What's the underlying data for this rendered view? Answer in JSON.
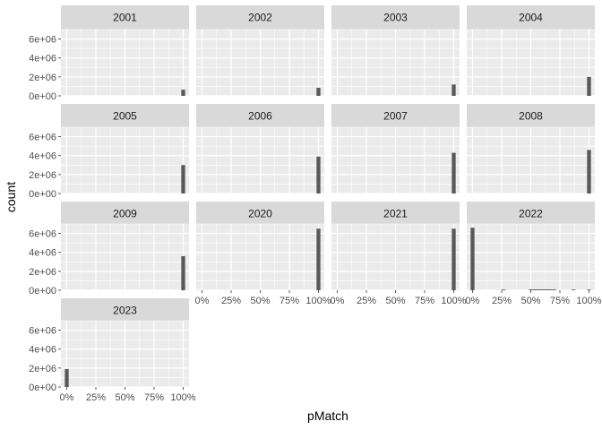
{
  "chart_data": {
    "type": "bar",
    "chart_kind": "faceted-histogram",
    "xlabel": "pMatch",
    "ylabel": "count",
    "x_ticks": [
      "0%",
      "25%",
      "50%",
      "75%",
      "100%"
    ],
    "x_tick_values": [
      0,
      0.25,
      0.5,
      0.75,
      1.0
    ],
    "y_ticks": [
      "0e+00",
      "2e+06",
      "4e+06",
      "6e+06"
    ],
    "y_tick_values": [
      0,
      2000000,
      4000000,
      6000000
    ],
    "xlim": [
      -0.05,
      1.05
    ],
    "ylim": [
      0,
      7000000
    ],
    "grid": true,
    "bin_width": 0.0333,
    "facets": [
      {
        "label": "2001",
        "bars": [
          {
            "x": 1.0,
            "count": 650000
          }
        ]
      },
      {
        "label": "2002",
        "bars": [
          {
            "x": 1.0,
            "count": 850000
          }
        ]
      },
      {
        "label": "2003",
        "bars": [
          {
            "x": 1.0,
            "count": 1200000
          }
        ]
      },
      {
        "label": "2004",
        "bars": [
          {
            "x": 1.0,
            "count": 2000000
          }
        ]
      },
      {
        "label": "2005",
        "bars": [
          {
            "x": 1.0,
            "count": 3000000
          }
        ]
      },
      {
        "label": "2006",
        "bars": [
          {
            "x": 1.0,
            "count": 3900000
          }
        ]
      },
      {
        "label": "2007",
        "bars": [
          {
            "x": 1.0,
            "count": 4300000
          }
        ]
      },
      {
        "label": "2008",
        "bars": [
          {
            "x": 1.0,
            "count": 4600000
          }
        ]
      },
      {
        "label": "2009",
        "bars": [
          {
            "x": 1.0,
            "count": 3600000
          }
        ]
      },
      {
        "label": "2020",
        "bars": [
          {
            "x": 1.0,
            "count": 6500000
          }
        ]
      },
      {
        "label": "2021",
        "bars": [
          {
            "x": 1.0,
            "count": 6500000
          }
        ]
      },
      {
        "label": "2022",
        "bars": [
          {
            "x": 0.0,
            "count": 6600000
          },
          {
            "x": 0.2667,
            "count": 60000
          },
          {
            "x": 0.5,
            "count": 90000
          },
          {
            "x": 0.5333,
            "count": 90000
          },
          {
            "x": 0.5667,
            "count": 90000
          },
          {
            "x": 0.6,
            "count": 90000
          },
          {
            "x": 0.6333,
            "count": 90000
          },
          {
            "x": 0.6667,
            "count": 90000
          },
          {
            "x": 0.7,
            "count": 90000
          },
          {
            "x": 0.8667,
            "count": 60000
          },
          {
            "x": 1.0,
            "count": 60000
          }
        ]
      },
      {
        "label": "2023",
        "bars": [
          {
            "x": 0.0,
            "count": 1900000
          }
        ]
      }
    ],
    "colors": {
      "panel_bg": "#ebebeb",
      "strip_bg": "#d9d9d9",
      "grid": "#ffffff",
      "bar": "#595959"
    }
  }
}
